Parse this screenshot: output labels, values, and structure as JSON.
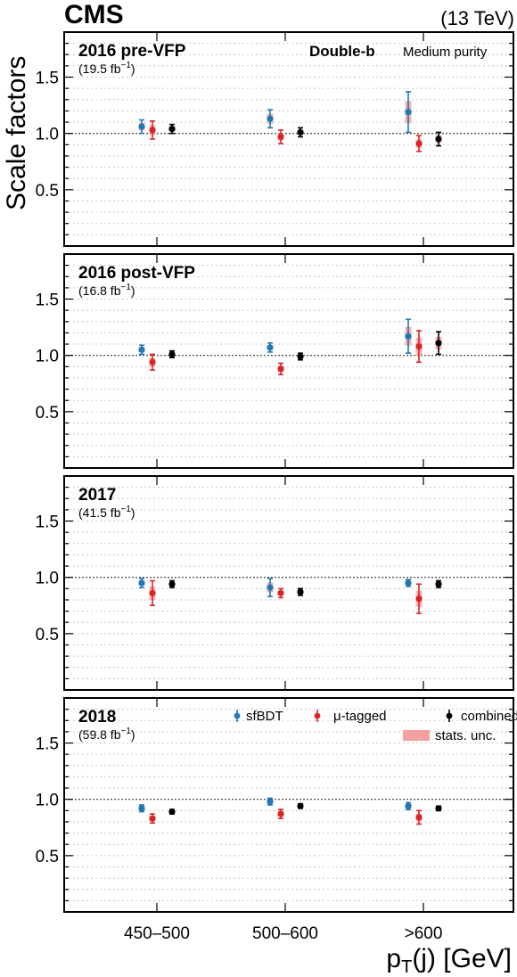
{
  "header": {
    "experiment": "CMS",
    "energy": "(13 TeV)"
  },
  "axes": {
    "ylabel": "Scale factors",
    "xlabel_main": "p",
    "xlabel_sub": "T",
    "xlabel_rest": "(j) [GeV]"
  },
  "category_tag": {
    "bold": "Double-b",
    "normal": "Medium purity"
  },
  "legend": {
    "items": [
      "sfBDT",
      "μ-tagged",
      "combined"
    ],
    "band": "stats. unc."
  },
  "colors": {
    "sfBDT": "#1f77b4",
    "mu_tagged": "#d62728",
    "combined": "#000000",
    "stat_band": "#f4a0a0"
  },
  "chart_data": {
    "type": "scatter",
    "categories": [
      "450–500",
      "500–600",
      ">600"
    ],
    "ylim": [
      0,
      1.9
    ],
    "yticks": [
      0.5,
      1.0,
      1.5
    ],
    "ytick_labels": [
      "0.5",
      "1.0",
      "1.5"
    ],
    "reference_line": 1.0,
    "grid": "dotted horizontal",
    "legend_position": "top-right (bottom panel)",
    "series_names": [
      "sfBDT",
      "μ-tagged",
      "combined"
    ],
    "panels": [
      {
        "title": "2016 pre-VFP",
        "lumi": "(19.5 fb",
        "series": [
          {
            "name": "sfBDT",
            "values": [
              1.06,
              1.13,
              1.19
            ],
            "errors": [
              0.06,
              0.08,
              0.18
            ]
          },
          {
            "name": "μ-tagged",
            "values": [
              1.03,
              0.97,
              0.91
            ],
            "errors": [
              0.08,
              0.06,
              0.07
            ]
          },
          {
            "name": "combined",
            "values": [
              1.04,
              1.01,
              0.95
            ],
            "errors": [
              0.04,
              0.04,
              0.06
            ]
          }
        ]
      },
      {
        "title": "2016 post-VFP",
        "lumi": "(16.8 fb",
        "series": [
          {
            "name": "sfBDT",
            "values": [
              1.05,
              1.07,
              1.17
            ],
            "errors": [
              0.04,
              0.04,
              0.15
            ]
          },
          {
            "name": "μ-tagged",
            "values": [
              0.94,
              0.88,
              1.08
            ],
            "errors": [
              0.07,
              0.05,
              0.14
            ]
          },
          {
            "name": "combined",
            "values": [
              1.01,
              0.99,
              1.11
            ],
            "errors": [
              0.03,
              0.03,
              0.1
            ]
          }
        ]
      },
      {
        "title": "2017",
        "lumi": "(41.5 fb",
        "series": [
          {
            "name": "sfBDT",
            "values": [
              0.95,
              0.91,
              0.95
            ],
            "errors": [
              0.04,
              0.08,
              0.03
            ]
          },
          {
            "name": "μ-tagged",
            "values": [
              0.86,
              0.86,
              0.81
            ],
            "errors": [
              0.11,
              0.04,
              0.13
            ]
          },
          {
            "name": "combined",
            "values": [
              0.94,
              0.87,
              0.94
            ],
            "errors": [
              0.03,
              0.03,
              0.03
            ]
          }
        ]
      },
      {
        "title": "2018",
        "lumi": "(59.8 fb",
        "series": [
          {
            "name": "sfBDT",
            "values": [
              0.92,
              0.98,
              0.94
            ],
            "errors": [
              0.03,
              0.03,
              0.03
            ]
          },
          {
            "name": "μ-tagged",
            "values": [
              0.83,
              0.87,
              0.84
            ],
            "errors": [
              0.04,
              0.04,
              0.06
            ]
          },
          {
            "name": "combined",
            "values": [
              0.89,
              0.94,
              0.92
            ],
            "errors": [
              0.02,
              0.02,
              0.02
            ]
          }
        ]
      }
    ]
  }
}
